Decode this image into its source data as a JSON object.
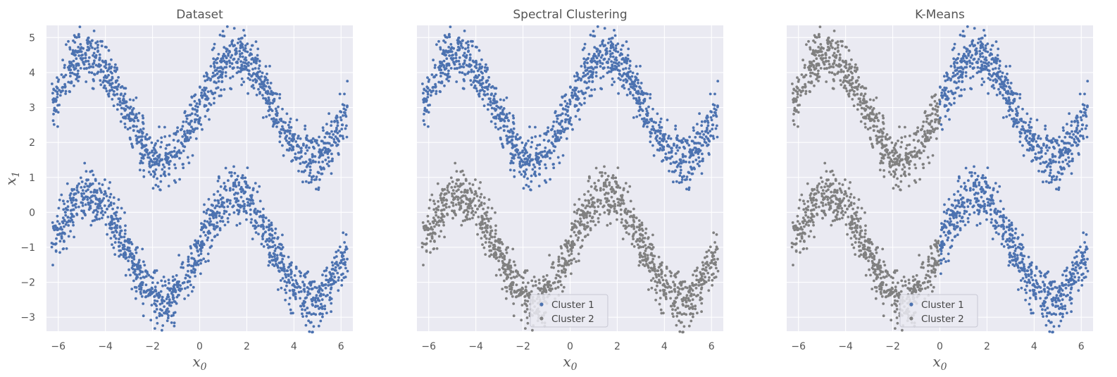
{
  "chart_data": [
    {
      "type": "scatter",
      "title": "Dataset",
      "xlabel_base": "x",
      "xlabel_sub": "0",
      "ylabel_base": "x",
      "ylabel_sub": "1",
      "xlim": [
        -6.5,
        6.5
      ],
      "ylim": [
        -3.4,
        5.35
      ],
      "xticks": [
        "-6",
        "-4",
        "-2",
        "0",
        "2",
        "4",
        "6"
      ],
      "yticks": [
        "-3",
        "-2",
        "-1",
        "0",
        "1",
        "2",
        "3",
        "4",
        "5"
      ],
      "grid": true,
      "legend": null,
      "coloring": "single",
      "series": [
        {
          "shape": "sine wave band",
          "x_range": [
            -6.28,
            6.28
          ],
          "y_center": 3.0,
          "amplitude": 1.5,
          "color": "#4c72b0"
        },
        {
          "shape": "sine wave band",
          "x_range": [
            -6.28,
            6.28
          ],
          "y_center": -1.0,
          "amplitude": 1.5,
          "color": "#4c72b0"
        }
      ],
      "points_per_band": 1300
    },
    {
      "type": "scatter",
      "title": "Spectral Clustering",
      "xlabel_base": "x",
      "xlabel_sub": "0",
      "xlim": [
        -6.5,
        6.5
      ],
      "ylim": [
        -3.4,
        5.35
      ],
      "xticks": [
        "-6",
        "-4",
        "-2",
        "0",
        "2",
        "4",
        "6"
      ],
      "grid": true,
      "legend": {
        "position": "lower-center",
        "entries": [
          "Cluster 1",
          "Cluster 2"
        ]
      },
      "coloring": "by-band",
      "series": [
        {
          "name": "Cluster 1",
          "region": "upper band",
          "color": "#4c72b0"
        },
        {
          "name": "Cluster 2",
          "region": "lower band",
          "color": "#808080"
        }
      ]
    },
    {
      "type": "scatter",
      "title": "K-Means",
      "xlabel_base": "x",
      "xlabel_sub": "0",
      "xlim": [
        -6.5,
        6.5
      ],
      "ylim": [
        -3.4,
        5.35
      ],
      "xticks": [
        "-6",
        "-4",
        "-2",
        "0",
        "2",
        "4",
        "6"
      ],
      "grid": true,
      "legend": {
        "position": "lower-center",
        "entries": [
          "Cluster 1",
          "Cluster 2"
        ]
      },
      "coloring": "by-x-split",
      "split_x": 0,
      "series": [
        {
          "name": "Cluster 1",
          "region": "x >= 0",
          "color": "#4c72b0"
        },
        {
          "name": "Cluster 2",
          "region": "x < 0",
          "color": "#808080"
        }
      ]
    }
  ],
  "colors": {
    "cluster1": "#4c72b0",
    "cluster2": "#808080",
    "plot_bg": "#eaeaf2",
    "grid": "#ffffff"
  }
}
